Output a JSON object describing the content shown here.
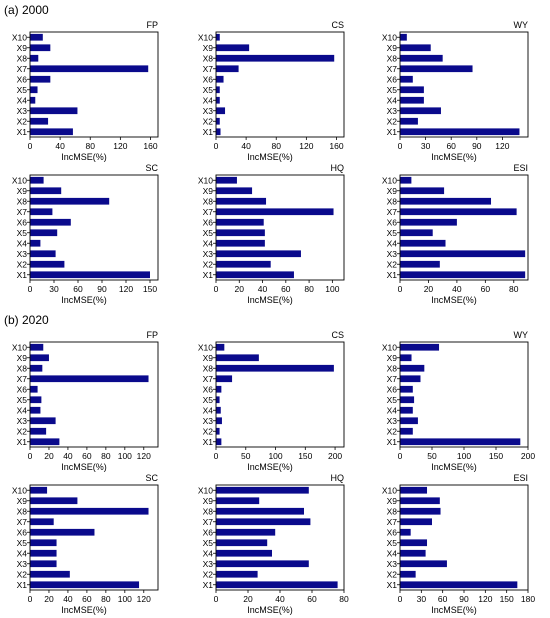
{
  "sections": [
    {
      "label": "(a) 2000"
    },
    {
      "label": "(b) 2020"
    }
  ],
  "style": {
    "bar_color": "#0a0a8c",
    "axis_color": "#000000",
    "background": "#ffffff"
  },
  "chart_data": [
    {
      "type": "bar",
      "orientation": "horizontal",
      "section": "(a) 2000",
      "title": "FP",
      "xlabel": "IncMSE(%)",
      "categories": [
        "X1",
        "X2",
        "X3",
        "X4",
        "X5",
        "X6",
        "X7",
        "X8",
        "X9",
        "X10"
      ],
      "values": [
        57,
        24,
        63,
        7,
        10,
        27,
        157,
        11,
        27,
        17
      ],
      "xlim": [
        0,
        170
      ],
      "xticks": [
        0,
        40,
        80,
        120,
        160
      ]
    },
    {
      "type": "bar",
      "orientation": "horizontal",
      "section": "(a) 2000",
      "title": "CS",
      "xlabel": "IncMSE(%)",
      "categories": [
        "X1",
        "X2",
        "X3",
        "X4",
        "X5",
        "X6",
        "X7",
        "X8",
        "X9",
        "X10"
      ],
      "values": [
        6,
        5,
        12,
        5,
        5,
        10,
        30,
        157,
        44,
        5
      ],
      "xlim": [
        0,
        170
      ],
      "xticks": [
        0,
        40,
        80,
        120,
        160
      ]
    },
    {
      "type": "bar",
      "orientation": "horizontal",
      "section": "(a) 2000",
      "title": "WY",
      "xlabel": "IncMSE(%)",
      "categories": [
        "X1",
        "X2",
        "X3",
        "X4",
        "X5",
        "X6",
        "X7",
        "X8",
        "X9",
        "X10"
      ],
      "values": [
        140,
        21,
        48,
        28,
        28,
        15,
        85,
        50,
        36,
        8
      ],
      "xlim": [
        0,
        150
      ],
      "xticks": [
        0,
        30,
        60,
        90,
        120
      ]
    },
    {
      "type": "bar",
      "orientation": "horizontal",
      "section": "(a) 2000",
      "title": "SC",
      "xlabel": "IncMSE(%)",
      "categories": [
        "X1",
        "X2",
        "X3",
        "X4",
        "X5",
        "X6",
        "X7",
        "X8",
        "X9",
        "X10"
      ],
      "values": [
        150,
        43,
        32,
        13,
        34,
        51,
        28,
        99,
        39,
        17
      ],
      "xlim": [
        0,
        160
      ],
      "xticks": [
        0,
        30,
        60,
        90,
        120,
        150
      ]
    },
    {
      "type": "bar",
      "orientation": "horizontal",
      "section": "(a) 2000",
      "title": "HQ",
      "xlabel": "IncMSE(%)",
      "categories": [
        "X1",
        "X2",
        "X3",
        "X4",
        "X5",
        "X6",
        "X7",
        "X8",
        "X9",
        "X10"
      ],
      "values": [
        67,
        47,
        73,
        42,
        42,
        41,
        101,
        43,
        31,
        18
      ],
      "xlim": [
        0,
        110
      ],
      "xticks": [
        0,
        20,
        40,
        60,
        80,
        100
      ]
    },
    {
      "type": "bar",
      "orientation": "horizontal",
      "section": "(a) 2000",
      "title": "ESI",
      "xlabel": "IncMSE(%)",
      "categories": [
        "X1",
        "X2",
        "X3",
        "X4",
        "X5",
        "X6",
        "X7",
        "X8",
        "X9",
        "X10"
      ],
      "values": [
        88,
        28,
        88,
        32,
        23,
        40,
        82,
        64,
        31,
        8
      ],
      "xlim": [
        0,
        90
      ],
      "xticks": [
        0,
        20,
        40,
        60,
        80
      ]
    },
    {
      "type": "bar",
      "orientation": "horizontal",
      "section": "(b) 2020",
      "title": "FP",
      "xlabel": "IncMSE(%)",
      "categories": [
        "X1",
        "X2",
        "X3",
        "X4",
        "X5",
        "X6",
        "X7",
        "X8",
        "X9",
        "X10"
      ],
      "values": [
        31,
        17,
        27,
        11,
        12,
        8,
        125,
        13,
        20,
        14
      ],
      "xlim": [
        0,
        135
      ],
      "xticks": [
        0,
        20,
        40,
        60,
        80,
        100,
        120
      ]
    },
    {
      "type": "bar",
      "orientation": "horizontal",
      "section": "(b) 2020",
      "title": "CS",
      "xlabel": "IncMSE(%)",
      "categories": [
        "X1",
        "X2",
        "X3",
        "X4",
        "X5",
        "X6",
        "X7",
        "X8",
        "X9",
        "X10"
      ],
      "values": [
        9,
        6,
        10,
        8,
        6,
        9,
        27,
        198,
        72,
        14
      ],
      "xlim": [
        0,
        215
      ],
      "xticks": [
        0,
        50,
        100,
        150,
        200
      ]
    },
    {
      "type": "bar",
      "orientation": "horizontal",
      "section": "(b) 2020",
      "title": "WY",
      "xlabel": "IncMSE(%)",
      "categories": [
        "X1",
        "X2",
        "X3",
        "X4",
        "X5",
        "X6",
        "X7",
        "X8",
        "X9",
        "X10"
      ],
      "values": [
        188,
        20,
        28,
        20,
        22,
        20,
        32,
        38,
        18,
        61
      ],
      "xlim": [
        0,
        200
      ],
      "xticks": [
        0,
        50,
        100,
        150,
        200
      ]
    },
    {
      "type": "bar",
      "orientation": "horizontal",
      "section": "(b) 2020",
      "title": "SC",
      "xlabel": "IncMSE(%)",
      "categories": [
        "X1",
        "X2",
        "X3",
        "X4",
        "X5",
        "X6",
        "X7",
        "X8",
        "X9",
        "X10"
      ],
      "values": [
        115,
        42,
        28,
        28,
        28,
        68,
        25,
        125,
        50,
        18
      ],
      "xlim": [
        0,
        135
      ],
      "xticks": [
        0,
        20,
        40,
        60,
        80,
        100,
        120
      ]
    },
    {
      "type": "bar",
      "orientation": "horizontal",
      "section": "(b) 2020",
      "title": "HQ",
      "xlabel": "IncMSE(%)",
      "categories": [
        "X1",
        "X2",
        "X3",
        "X4",
        "X5",
        "X6",
        "X7",
        "X8",
        "X9",
        "X10"
      ],
      "values": [
        76,
        26,
        58,
        35,
        32,
        37,
        59,
        55,
        27,
        58
      ],
      "xlim": [
        0,
        80
      ],
      "xticks": [
        0,
        20,
        40,
        60,
        80
      ]
    },
    {
      "type": "bar",
      "orientation": "horizontal",
      "section": "(b) 2020",
      "title": "ESI",
      "xlabel": "IncMSE(%)",
      "categories": [
        "X1",
        "X2",
        "X3",
        "X4",
        "X5",
        "X6",
        "X7",
        "X8",
        "X9",
        "X10"
      ],
      "values": [
        165,
        22,
        66,
        36,
        38,
        15,
        45,
        57,
        56,
        38
      ],
      "xlim": [
        0,
        180
      ],
      "xticks": [
        0,
        30,
        60,
        90,
        120,
        150,
        180
      ]
    }
  ]
}
